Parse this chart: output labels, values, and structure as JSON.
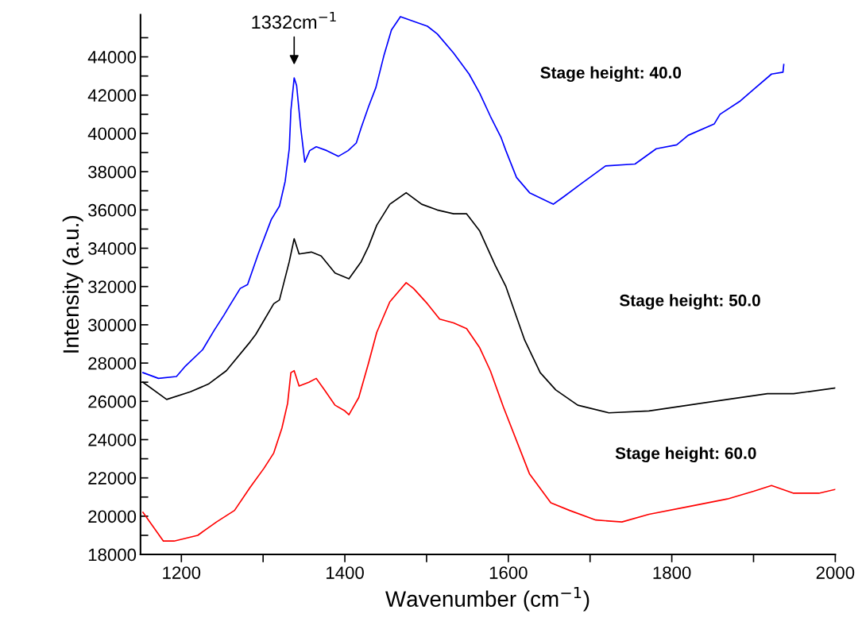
{
  "chart_data": {
    "type": "line",
    "xlabel": "Wavenumber (cm$^{−1}$)",
    "ylabel": "Intensity (a.u.)",
    "xlim": [
      1150,
      2000
    ],
    "ylim": [
      18000,
      46200
    ],
    "xticks": [
      1200,
      {
        "value": 1300,
        "label": null
      },
      1400,
      {
        "value": 1500,
        "label": null
      },
      1600,
      {
        "value": 1700,
        "label": null
      },
      1800,
      {
        "value": 1900,
        "label": null
      },
      2000
    ],
    "yticks": [
      18000,
      {
        "value": 19000,
        "label": null
      },
      20000,
      {
        "value": 21000,
        "label": null
      },
      22000,
      {
        "value": 23000,
        "label": null
      },
      24000,
      {
        "value": 25000,
        "label": null
      },
      26000,
      {
        "value": 27000,
        "label": null
      },
      28000,
      {
        "value": 29000,
        "label": null
      },
      30000,
      {
        "value": 31000,
        "label": null
      },
      32000,
      {
        "value": 33000,
        "label": null
      },
      34000,
      {
        "value": 35000,
        "label": null
      },
      36000,
      {
        "value": 37000,
        "label": null
      },
      38000,
      {
        "value": 39000,
        "label": null
      },
      40000,
      {
        "value": 41000,
        "label": null
      },
      42000,
      {
        "value": 43000,
        "label": null
      },
      44000,
      {
        "value": 45000,
        "label": null
      }
    ],
    "annotations": [
      {
        "text": "1332cm$^{−1}$",
        "x": 1338,
        "y": 42900
      },
      "Stage height: 40.0",
      "Stage height: 50.0",
      "Stage height: 60.0"
    ],
    "series": [
      {
        "color": "#0000ff",
        "x": [
          1153,
          1172,
          1194,
          1204,
          1226,
          1240,
          1252,
          1259,
          1272,
          1281,
          1294,
          1310,
          1320,
          1327,
          1332,
          1334,
          1338,
          1341,
          1346,
          1351,
          1357,
          1365,
          1378,
          1392,
          1404,
          1414,
          1420,
          1429,
          1438,
          1448,
          1457,
          1468,
          1481,
          1501,
          1513,
          1533,
          1552,
          1565,
          1578,
          1591,
          1597,
          1610,
          1626,
          1655,
          1668,
          1690,
          1719,
          1755,
          1781,
          1806,
          1820,
          1852,
          1859,
          1884,
          1900,
          1922,
          1936,
          1937
        ],
        "values": [
          27500,
          27200,
          27300,
          27800,
          28700,
          29700,
          30500,
          31000,
          31900,
          32100,
          33700,
          35500,
          36200,
          37500,
          39200,
          41200,
          42900,
          42500,
          40300,
          38500,
          39100,
          39300,
          39100,
          38800,
          39100,
          39500,
          40300,
          41400,
          42400,
          44100,
          45400,
          46100,
          45900,
          45600,
          45200,
          44200,
          43100,
          42100,
          40900,
          39800,
          39100,
          37700,
          36900,
          36300,
          36700,
          37400,
          38300,
          38400,
          39200,
          39400,
          39900,
          40500,
          41000,
          41700,
          42300,
          43100,
          43200,
          43600
        ]
      },
      {
        "color": "#000000",
        "x": [
          1153,
          1182,
          1211,
          1233,
          1255,
          1284,
          1291,
          1313,
          1320,
          1332,
          1338,
          1344,
          1359,
          1371,
          1388,
          1405,
          1420,
          1429,
          1439,
          1455,
          1475,
          1494,
          1513,
          1533,
          1549,
          1565,
          1584,
          1597,
          1620,
          1639,
          1658,
          1685,
          1723,
          1772,
          1820,
          1868,
          1917,
          1949,
          2000
        ],
        "values": [
          27000,
          26100,
          26500,
          26900,
          27600,
          29100,
          29500,
          31100,
          31300,
          33300,
          34500,
          33700,
          33800,
          33600,
          32700,
          32400,
          33300,
          34100,
          35200,
          36300,
          36900,
          36300,
          36000,
          35800,
          35800,
          34900,
          33100,
          32000,
          29200,
          27500,
          26600,
          25800,
          25400,
          25500,
          25800,
          26100,
          26400,
          26400,
          26700
        ]
      },
      {
        "color": "#ff0000",
        "x": [
          1153,
          1178,
          1191,
          1220,
          1243,
          1265,
          1284,
          1301,
          1313,
          1323,
          1330,
          1334,
          1338,
          1344,
          1356,
          1365,
          1375,
          1388,
          1400,
          1405,
          1417,
          1429,
          1439,
          1455,
          1475,
          1484,
          1501,
          1516,
          1533,
          1549,
          1565,
          1578,
          1594,
          1626,
          1652,
          1675,
          1707,
          1739,
          1772,
          1820,
          1868,
          1900,
          1922,
          1949,
          1980,
          2000
        ],
        "values": [
          20200,
          18700,
          18700,
          19000,
          19700,
          20300,
          21500,
          22500,
          23300,
          24600,
          25900,
          27500,
          27600,
          26800,
          27000,
          27200,
          26600,
          25800,
          25500,
          25300,
          26200,
          28000,
          29600,
          31200,
          32200,
          31900,
          31100,
          30300,
          30100,
          29800,
          28800,
          27600,
          25700,
          22200,
          20700,
          20300,
          19800,
          19700,
          20100,
          20500,
          20900,
          21300,
          21600,
          21200,
          21200,
          21400
        ]
      }
    ]
  }
}
